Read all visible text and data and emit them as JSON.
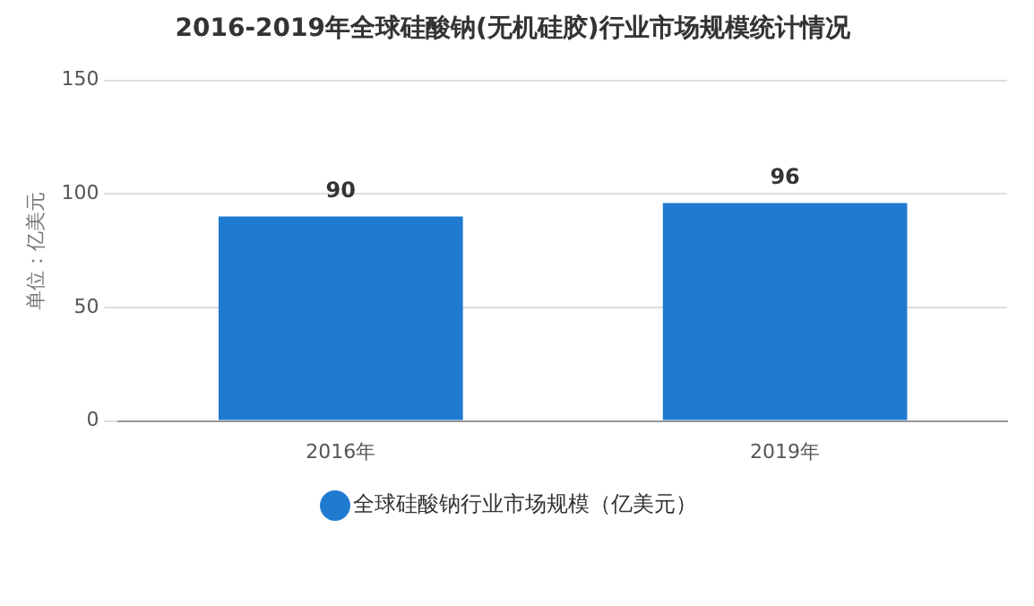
{
  "chart_data": {
    "type": "bar",
    "title": "2016-2019年全球硅酸钠(无机硅胶)行业市场规模统计情况",
    "ylabel": "单位：亿美元",
    "categories": [
      "2016年",
      "2019年"
    ],
    "series": [
      {
        "name": "全球硅酸钠行业市场规模（亿美元）",
        "color": "#1f7bd0",
        "values": [
          90,
          96
        ]
      }
    ],
    "ylim": [
      0,
      150
    ],
    "yticks": [
      0,
      50,
      100,
      150
    ],
    "grid": "y",
    "legend": "bottom",
    "data_labels": true
  }
}
